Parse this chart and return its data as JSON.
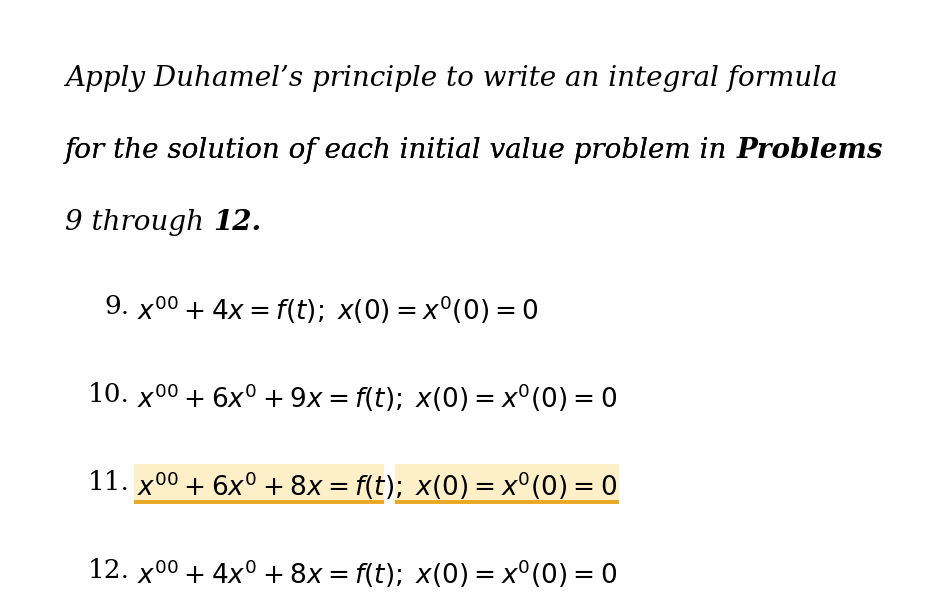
{
  "background_color": "#ffffff",
  "text_color": "#000000",
  "highlight_color": "#fdf0c8",
  "underline_color": "#e8a820",
  "font_size_title": 20,
  "font_size_problems": 19,
  "fig_width": 9.22,
  "fig_height": 5.58,
  "title_line1": "Apply Duhamel’s principle to write an integral formula",
  "title_line2_normal": "for the solution of each initial value problem in ",
  "title_line2_bold": "Problems",
  "title_line3_normal": "9 through ",
  "title_line3_bold": "12.",
  "problems": [
    {
      "number": "9.",
      "eq": "$x''+4x = f(t);\\; x(0) = x'(0) = 0$",
      "highlight": false
    },
    {
      "number": "10.",
      "eq": "$x''+6x'+9x = f(t);\\; x(0) = x'(0) = 0$",
      "highlight": false
    },
    {
      "number": "11.",
      "eq": "$x''+6x'+8x = f(t);\\; x(0) = x'(0) = 0$",
      "highlight": true
    },
    {
      "number": "12.",
      "eq": "$x''+4x'+8x = f(t);\\; x(0) = x'(0) = 0$",
      "highlight": false
    }
  ]
}
